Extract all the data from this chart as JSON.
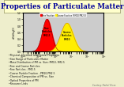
{
  "title": "Properties of Particulate Matter",
  "title_color": "#000099",
  "title_bg": "#ffffcc",
  "title_border": "#999966",
  "background_color": "#eeeecc",
  "chart_bg": "#cccccc",
  "legend1": "Fine Fraction",
  "legend2": "Coarse Fraction (PM10-PM2.5)",
  "red_peak_log": -0.52,
  "red_sigma": 0.28,
  "yellow_peak_log": 0.72,
  "yellow_sigma": 0.38,
  "yellow_amplitude": 0.88,
  "bullet_points": [
    "Physical, Chemical and Optical Properties",
    "Size Range of Particulate Matter",
    "Mass Distribution of PM vs. Size: PM10, PM2.5",
    "Fine and Coarse Particles",
    "Fine Particles - PM2.5",
    "Coarse Particle Fraction - PM10-PM2.5",
    "Chemical Composition of PM vs. Size",
    "Optical Properties of PM",
    "Resource Links"
  ],
  "ylabel": "dV/d(logD)",
  "footer": "Courtesy: Rachel Silcox"
}
